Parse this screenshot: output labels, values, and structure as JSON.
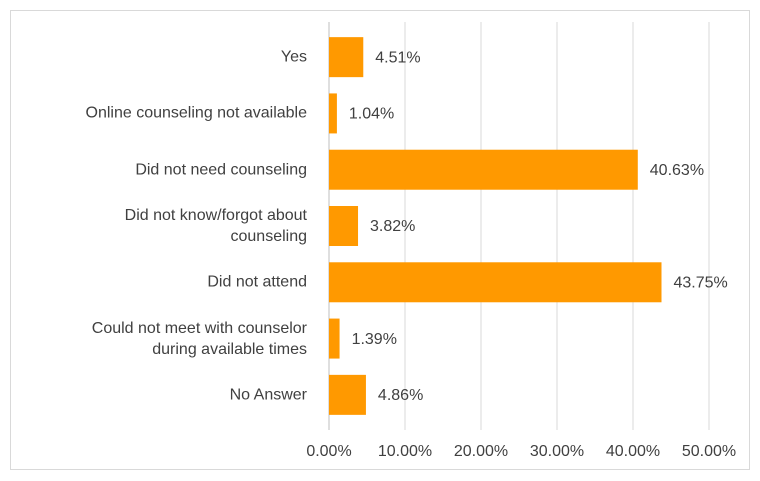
{
  "chart_data": {
    "type": "bar",
    "orientation": "horizontal",
    "categories": [
      "Yes",
      "Online counseling not available",
      "Did not need counseling",
      "Did not know/forgot about\ncounseling",
      "Did not attend",
      "Could not meet with counselor\nduring available times",
      "No Answer"
    ],
    "values": [
      4.51,
      1.04,
      40.63,
      3.82,
      43.75,
      1.39,
      4.86
    ],
    "value_labels": [
      "4.51%",
      "1.04%",
      "40.63%",
      "3.82%",
      "43.75%",
      "1.39%",
      "4.86%"
    ],
    "color": "#ff9900",
    "xlim": [
      0,
      50
    ],
    "xticks": [
      {
        "value": 0,
        "label": "0.00%"
      },
      {
        "value": 10,
        "label": "10.00%"
      },
      {
        "value": 20,
        "label": "20.00%"
      },
      {
        "value": 30,
        "label": "30.00%"
      },
      {
        "value": 40,
        "label": "40.00%"
      },
      {
        "value": 50,
        "label": "50.00%"
      }
    ],
    "grid": true
  }
}
